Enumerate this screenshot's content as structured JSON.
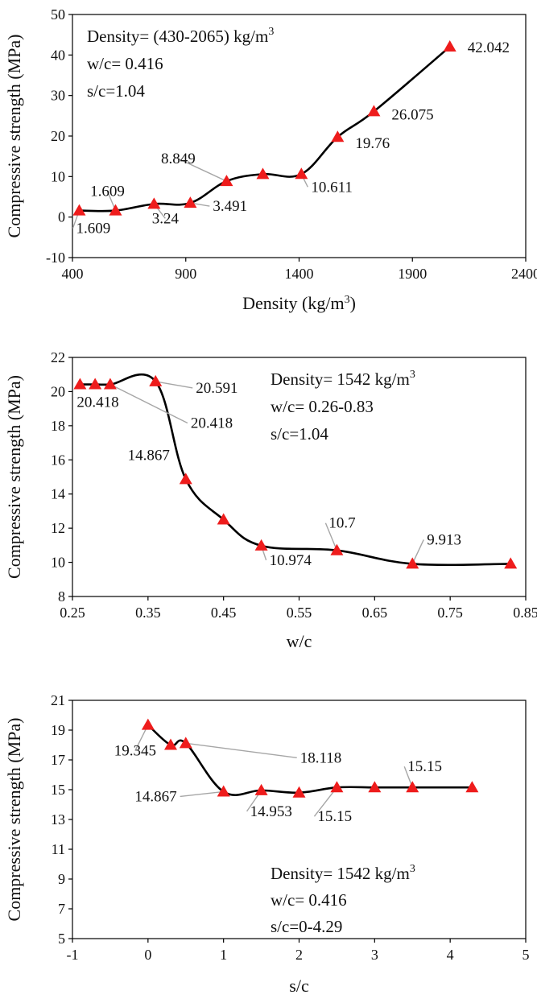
{
  "chart_data": [
    {
      "type": "line",
      "xlabel": "Density (kg/m3)",
      "xlabel_main": "Density (kg/m",
      "xlabel_sup": "3",
      "xlabel_tail": ")",
      "ylabel": "Compressive strength (MPa)",
      "xlim": [
        400,
        2400
      ],
      "ylim": [
        -10,
        50
      ],
      "xticks": [
        400,
        900,
        1400,
        1900,
        2400
      ],
      "yticks": [
        -10,
        0,
        10,
        20,
        30,
        40,
        50
      ],
      "grid": false,
      "marker": "triangle",
      "annotation_lines": [
        {
          "main": "Density= (430-2065) kg/m",
          "sup": "3"
        },
        {
          "main": "w/c= 0.416",
          "sup": ""
        },
        {
          "main": "s/c=1.04",
          "sup": ""
        }
      ],
      "series": [
        {
          "x": [
            430,
            590,
            760,
            920,
            1080,
            1240,
            1410,
            1570,
            1730,
            2065
          ],
          "y": [
            1.609,
            1.609,
            3.24,
            3.491,
            8.849,
            10.6,
            10.611,
            19.76,
            26.075,
            42.042
          ]
        }
      ],
      "data_labels": [
        {
          "text": "1.609",
          "point": 0
        },
        {
          "text": "1.609",
          "point": 1
        },
        {
          "text": "3.24",
          "point": 2
        },
        {
          "text": "3.491",
          "point": 3
        },
        {
          "text": "8.849",
          "point": 4
        },
        {
          "text": "10.611",
          "point": 6
        },
        {
          "text": "19.76",
          "point": 7
        },
        {
          "text": "26.075",
          "point": 8
        },
        {
          "text": "42.042",
          "point": 9
        }
      ]
    },
    {
      "type": "line",
      "xlabel": "w/c",
      "xlabel_main": "w/c",
      "xlabel_sup": "",
      "xlabel_tail": "",
      "ylabel": "Compressive strength (MPa)",
      "xlim": [
        0.25,
        0.85
      ],
      "ylim": [
        8,
        22
      ],
      "xticks": [
        0.25,
        0.35,
        0.45,
        0.55,
        0.65,
        0.75,
        0.85
      ],
      "yticks": [
        8,
        10,
        12,
        14,
        16,
        18,
        20,
        22
      ],
      "grid": false,
      "marker": "triangle",
      "annotation_lines": [
        {
          "main": "Density= 1542 kg/m",
          "sup": "3"
        },
        {
          "main": "w/c= 0.26-0.83",
          "sup": ""
        },
        {
          "main": "s/c=1.04",
          "sup": ""
        }
      ],
      "series": [
        {
          "x": [
            0.26,
            0.28,
            0.3,
            0.36,
            0.4,
            0.45,
            0.5,
            0.6,
            0.7,
            0.83
          ],
          "y": [
            20.418,
            20.418,
            20.418,
            20.591,
            14.867,
            12.5,
            10.974,
            10.7,
            9.913,
            9.913
          ]
        }
      ],
      "data_labels": [
        {
          "text": "20.418",
          "point": 0
        },
        {
          "text": "20.591",
          "point": 3
        },
        {
          "text": "20.418",
          "point": 2
        },
        {
          "text": "14.867",
          "point": 4
        },
        {
          "text": "10.974",
          "point": 6
        },
        {
          "text": "10.7",
          "point": 7
        },
        {
          "text": "9.913",
          "point": 8
        }
      ]
    },
    {
      "type": "line",
      "xlabel": "s/c",
      "xlabel_main": "s/c",
      "xlabel_sup": "",
      "xlabel_tail": "",
      "ylabel": "Compressive strength (MPa)",
      "xlim": [
        -1,
        5
      ],
      "ylim": [
        5,
        21
      ],
      "xticks": [
        -1,
        0,
        1,
        2,
        3,
        4,
        5
      ],
      "yticks": [
        5,
        7,
        9,
        11,
        13,
        15,
        17,
        19,
        21
      ],
      "grid": false,
      "marker": "triangle",
      "annotation_lines": [
        {
          "main": "Density= 1542 kg/m",
          "sup": "3"
        },
        {
          "main": "w/c= 0.416",
          "sup": ""
        },
        {
          "main": "s/c=0-4.29",
          "sup": ""
        }
      ],
      "series": [
        {
          "x": [
            0,
            0.3,
            0.5,
            1,
            1.5,
            2,
            2.5,
            3,
            3.5,
            4.29
          ],
          "y": [
            19.345,
            18.0,
            18.118,
            14.867,
            14.953,
            14.8,
            15.15,
            15.15,
            15.15,
            15.15
          ]
        }
      ],
      "data_labels": [
        {
          "text": "19.345",
          "point": 0
        },
        {
          "text": "18.118",
          "point": 2
        },
        {
          "text": "14.867",
          "point": 3
        },
        {
          "text": "14.953",
          "point": 4
        },
        {
          "text": "15.15",
          "point": 6
        },
        {
          "text": "15.15",
          "point": 8
        }
      ]
    }
  ],
  "colors": {
    "marker": "#ee1c1c",
    "line": "#000000",
    "leader": "#a6a6a6",
    "axis": "#000000"
  }
}
